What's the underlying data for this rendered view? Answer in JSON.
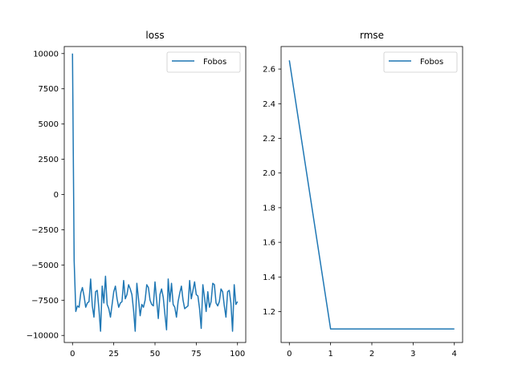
{
  "chart_data": [
    {
      "type": "line",
      "title": "loss",
      "xlabel": "",
      "ylabel": "",
      "xlim": [
        -5,
        105
      ],
      "ylim": [
        -10500,
        10500
      ],
      "xticks": [
        0,
        25,
        50,
        75,
        100
      ],
      "yticks": [
        10000,
        7500,
        5000,
        2500,
        0,
        -2500,
        -5000,
        -7500,
        -10000
      ],
      "xticklabels": [
        "0",
        "25",
        "50",
        "75",
        "100"
      ],
      "yticklabels": [
        "10000",
        "7500",
        "5000",
        "2500",
        "0",
        "−2500",
        "−5000",
        "−7500",
        "−10000"
      ],
      "legend_position": "upper-right",
      "series": [
        {
          "name": "Fobos",
          "color": "#1f77b4",
          "x": [
            0,
            1,
            2,
            3,
            4,
            5,
            6,
            7,
            8,
            9,
            10,
            11,
            12,
            13,
            14,
            15,
            16,
            17,
            18,
            19,
            20,
            21,
            22,
            23,
            24,
            25,
            26,
            27,
            28,
            29,
            30,
            31,
            32,
            33,
            34,
            35,
            36,
            37,
            38,
            39,
            40,
            41,
            42,
            43,
            44,
            45,
            46,
            47,
            48,
            49,
            50,
            51,
            52,
            53,
            54,
            55,
            56,
            57,
            58,
            59,
            60,
            61,
            62,
            63,
            64,
            65,
            66,
            67,
            68,
            69,
            70,
            71,
            72,
            73,
            74,
            75,
            76,
            77,
            78,
            79,
            80,
            81,
            82,
            83,
            84,
            85,
            86,
            87,
            88,
            89,
            90,
            91,
            92,
            93,
            94,
            95,
            96,
            97,
            98,
            99,
            100
          ],
          "values": [
            10000,
            -4700,
            -8300,
            -7900,
            -8000,
            -7000,
            -6600,
            -7200,
            -8000,
            -7700,
            -7600,
            -6000,
            -7900,
            -8700,
            -6900,
            -6800,
            -8100,
            -9700,
            -6500,
            -7700,
            -5800,
            -7800,
            -8100,
            -8700,
            -7800,
            -6900,
            -6500,
            -7400,
            -8000,
            -7700,
            -7600,
            -6100,
            -7400,
            -7100,
            -6400,
            -6700,
            -7100,
            -8200,
            -9700,
            -6300,
            -7400,
            -8600,
            -7800,
            -8000,
            -7500,
            -6400,
            -6600,
            -7500,
            -7800,
            -7900,
            -6200,
            -7500,
            -8800,
            -7100,
            -6700,
            -7300,
            -8500,
            -9600,
            -6000,
            -7600,
            -6300,
            -7800,
            -8000,
            -8700,
            -7600,
            -7000,
            -6500,
            -7500,
            -8100,
            -8000,
            -7900,
            -6100,
            -7400,
            -6800,
            -6200,
            -7100,
            -7200,
            -8100,
            -9500,
            -6400,
            -7300,
            -8300,
            -6900,
            -8000,
            -7600,
            -6300,
            -6400,
            -7700,
            -7900,
            -7600,
            -6700,
            -6900,
            -7900,
            -8700,
            -6900,
            -6800,
            -7700,
            -9700,
            -6400,
            -7800,
            -7600
          ]
        }
      ]
    },
    {
      "type": "line",
      "title": "rmse",
      "xlabel": "",
      "ylabel": "",
      "xlim": [
        -0.2,
        4.2
      ],
      "ylim": [
        1.022,
        2.73
      ],
      "xticks": [
        0,
        1,
        2,
        3,
        4
      ],
      "yticks": [
        2.6,
        2.4,
        2.2,
        2.0,
        1.8,
        1.6,
        1.4,
        1.2
      ],
      "xticklabels": [
        "0",
        "1",
        "2",
        "3",
        "4"
      ],
      "yticklabels": [
        "2.6",
        "2.4",
        "2.2",
        "2.0",
        "1.8",
        "1.6",
        "1.4",
        "1.2"
      ],
      "legend_position": "upper-right",
      "series": [
        {
          "name": "Fobos",
          "color": "#1f77b4",
          "x": [
            0,
            1,
            2,
            3,
            4
          ],
          "values": [
            2.65,
            1.1,
            1.1,
            1.1,
            1.1
          ]
        }
      ]
    }
  ]
}
